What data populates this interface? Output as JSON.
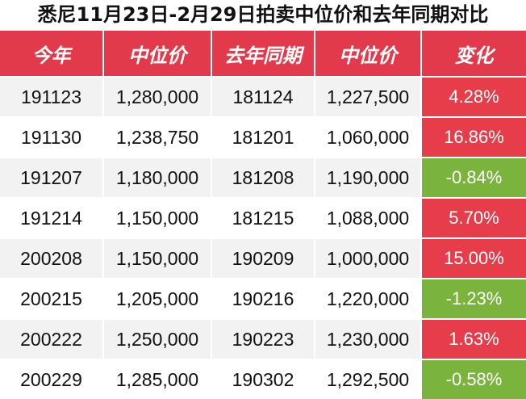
{
  "title": "悉尼11月23日-2月29日拍卖中位价和去年同期对比",
  "headers": [
    "今年",
    "中位价",
    "去年同期",
    "中位价",
    "变化"
  ],
  "rows": [
    {
      "date": "191123",
      "median": "1,280,000",
      "prev_date": "181124",
      "prev_median": "1,227,500",
      "change": "4.28%",
      "direction": "up"
    },
    {
      "date": "191130",
      "median": "1,238,750",
      "prev_date": "181201",
      "prev_median": "1,060,000",
      "change": "16.86%",
      "direction": "up"
    },
    {
      "date": "191207",
      "median": "1,180,000",
      "prev_date": "181208",
      "prev_median": "1,190,000",
      "change": "-0.84%",
      "direction": "down"
    },
    {
      "date": "191214",
      "median": "1,150,000",
      "prev_date": "181215",
      "prev_median": "1,088,000",
      "change": "5.70%",
      "direction": "up"
    },
    {
      "date": "200208",
      "median": "1,150,000",
      "prev_date": "190209",
      "prev_median": "1,000,000",
      "change": "15.00%",
      "direction": "up"
    },
    {
      "date": "200215",
      "median": "1,205,000",
      "prev_date": "190216",
      "prev_median": "1,220,000",
      "change": "-1.23%",
      "direction": "down"
    },
    {
      "date": "200222",
      "median": "1,250,000",
      "prev_date": "190223",
      "prev_median": "1,230,000",
      "change": "1.63%",
      "direction": "up"
    },
    {
      "date": "200229",
      "median": "1,285,000",
      "prev_date": "190302",
      "prev_median": "1,292,500",
      "change": "-0.58%",
      "direction": "down"
    }
  ],
  "colors": {
    "header_bg": "#e33a4b",
    "increase": "#e73c4a",
    "decrease": "#7ab43c",
    "alt_row": "#f2f2f2"
  }
}
